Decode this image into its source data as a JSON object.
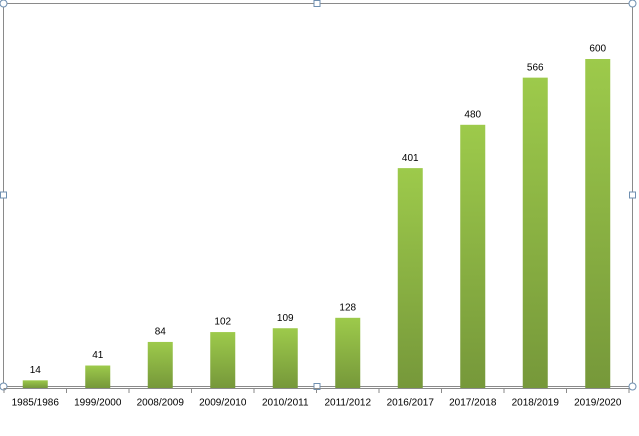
{
  "chart_data": {
    "type": "bar",
    "categories": [
      "1985/1986",
      "1999/2000",
      "2008/2009",
      "2009/2010",
      "2010/2011",
      "2011/2012",
      "2016/2017",
      "2017/2018",
      "2018/2019",
      "2019/2020"
    ],
    "values": [
      14,
      41,
      84,
      102,
      109,
      128,
      401,
      480,
      566,
      600
    ],
    "color": "#9dca4b"
  }
}
